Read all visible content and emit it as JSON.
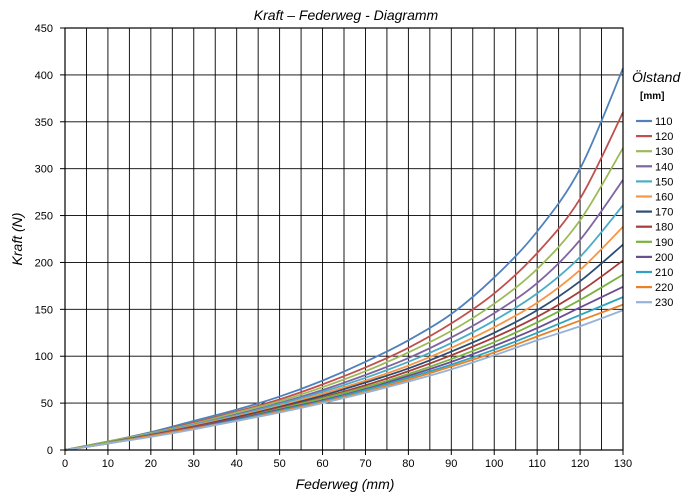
{
  "chart_data": {
    "type": "line",
    "title": "Kraft – Federweg - Diagramm",
    "xlabel": "Federweg (mm)",
    "ylabel": "Kraft (N)",
    "xlim": [
      0,
      130
    ],
    "ylim": [
      0,
      450
    ],
    "x_ticks": [
      "0",
      "10",
      "20",
      "30",
      "40",
      "50",
      "60",
      "70",
      "80",
      "90",
      "100",
      "110",
      "120",
      "130"
    ],
    "y_ticks": [
      "0",
      "50",
      "100",
      "150",
      "200",
      "250",
      "300",
      "350",
      "400",
      "450"
    ],
    "grid": true,
    "legend_title": "Ölstand",
    "legend_subtitle": "[mm]",
    "legend_position": "right",
    "x": [
      0,
      10,
      20,
      30,
      40,
      50,
      60,
      70,
      80,
      90,
      100,
      110,
      120,
      130
    ],
    "series": [
      {
        "name": "110",
        "color": "#4f81bd",
        "values": [
          0,
          9,
          19,
          31,
          43,
          57,
          74,
          94,
          117,
          145,
          184,
          233,
          300,
          407
        ]
      },
      {
        "name": "120",
        "color": "#c0504d",
        "values": [
          0,
          9,
          18,
          29,
          41,
          54,
          70,
          88,
          109,
          135,
          167,
          210,
          268,
          360
        ]
      },
      {
        "name": "130",
        "color": "#9bbb59",
        "values": [
          0,
          9,
          18,
          28,
          40,
          52,
          67,
          84,
          104,
          127,
          156,
          193,
          245,
          322
        ]
      },
      {
        "name": "140",
        "color": "#8064a2",
        "values": [
          0,
          8,
          17,
          27,
          38,
          50,
          64,
          80,
          98,
          120,
          146,
          178,
          224,
          288
        ]
      },
      {
        "name": "150",
        "color": "#4bacc6",
        "values": [
          0,
          8,
          17,
          27,
          37,
          49,
          62,
          77,
          94,
          114,
          138,
          167,
          206,
          261
        ]
      },
      {
        "name": "160",
        "color": "#f79646",
        "values": [
          0,
          8,
          16,
          26,
          36,
          47,
          60,
          74,
          90,
          109,
          131,
          157,
          192,
          238
        ]
      },
      {
        "name": "170",
        "color": "#2c4d75",
        "values": [
          0,
          8,
          16,
          25,
          35,
          46,
          58,
          72,
          87,
          105,
          125,
          149,
          180,
          219
        ]
      },
      {
        "name": "180",
        "color": "#a53d3a",
        "values": [
          0,
          8,
          16,
          25,
          34,
          45,
          56,
          69,
          84,
          101,
          120,
          142,
          169,
          202
        ]
      },
      {
        "name": "190",
        "color": "#7ab33e",
        "values": [
          0,
          8,
          15,
          24,
          33,
          44,
          55,
          67,
          81,
          97,
          115,
          136,
          160,
          187
        ]
      },
      {
        "name": "200",
        "color": "#6b4e91",
        "values": [
          0,
          7,
          15,
          24,
          33,
          43,
          53,
          65,
          79,
          94,
          111,
          130,
          152,
          174
        ]
      },
      {
        "name": "210",
        "color": "#2fa3bd",
        "values": [
          0,
          7,
          15,
          23,
          32,
          42,
          52,
          64,
          77,
          91,
          107,
          125,
          144,
          163
        ]
      },
      {
        "name": "220",
        "color": "#e8822a",
        "values": [
          0,
          7,
          15,
          23,
          31,
          41,
          51,
          62,
          75,
          89,
          104,
          121,
          138,
          155
        ]
      },
      {
        "name": "230",
        "color": "#95b3d7",
        "values": [
          0,
          7,
          14,
          22,
          31,
          40,
          50,
          61,
          73,
          86,
          101,
          117,
          132,
          149
        ]
      }
    ]
  }
}
